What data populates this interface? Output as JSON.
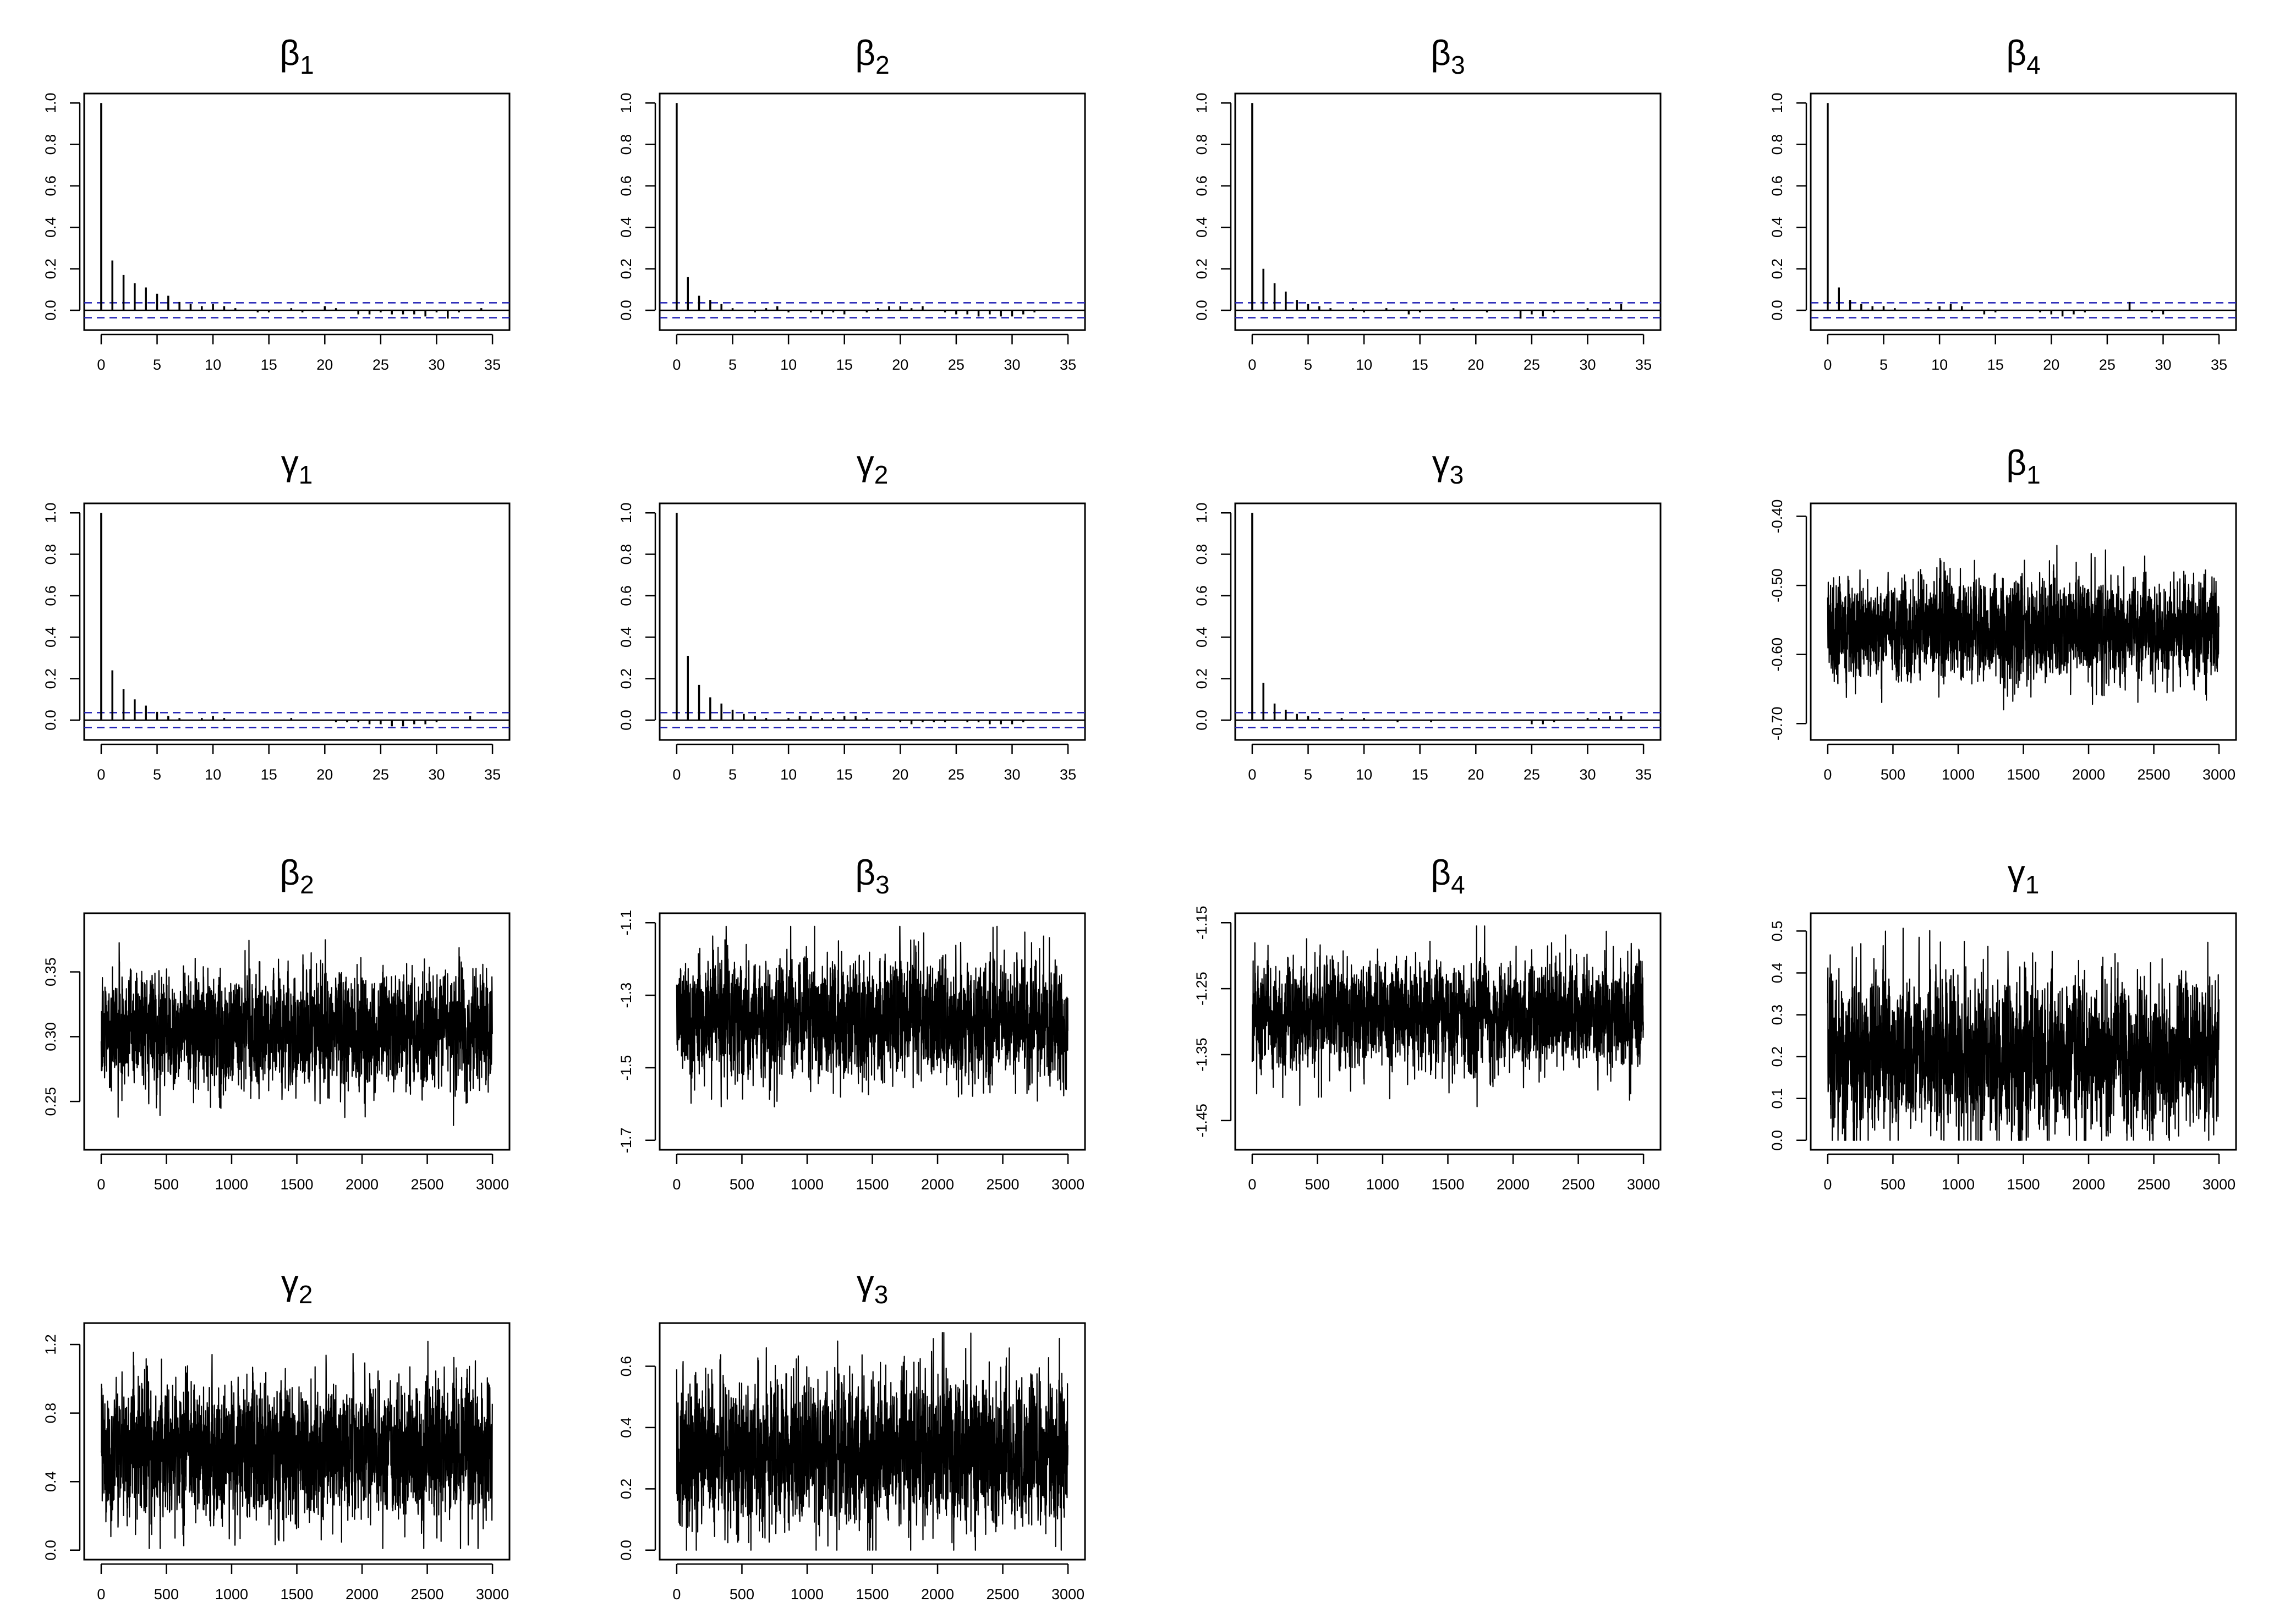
{
  "chart_data": [
    {
      "type": "acf",
      "title": {
        "symbol": "β",
        "sub": "1"
      },
      "xlim": [
        0,
        35
      ],
      "ylim": [
        -0.05,
        1.0
      ],
      "xticks": [
        "0",
        "5",
        "10",
        "15",
        "20",
        "25",
        "30",
        "35"
      ],
      "yticks": [
        "0.0",
        "0.2",
        "0.4",
        "0.6",
        "0.8",
        "1.0"
      ],
      "conf_band": 0.036,
      "lags": [
        0,
        1,
        2,
        3,
        4,
        5,
        6,
        7,
        8,
        9,
        10,
        11,
        12,
        13,
        14,
        15,
        16,
        17,
        18,
        19,
        20,
        21,
        22,
        23,
        24,
        25,
        26,
        27,
        28,
        29,
        30,
        31,
        32,
        33,
        34,
        35
      ],
      "acf": [
        1.0,
        0.24,
        0.17,
        0.13,
        0.11,
        0.08,
        0.07,
        0.04,
        0.03,
        0.02,
        0.03,
        0.02,
        0.01,
        0.0,
        -0.01,
        -0.01,
        0.0,
        0.01,
        -0.01,
        0.0,
        0.02,
        0.01,
        0.0,
        -0.02,
        -0.02,
        -0.01,
        -0.02,
        -0.02,
        -0.02,
        -0.03,
        -0.01,
        -0.04,
        -0.01,
        0.0,
        0.01,
        0.0
      ]
    },
    {
      "type": "acf",
      "title": {
        "symbol": "β",
        "sub": "2"
      },
      "xlim": [
        0,
        35
      ],
      "ylim": [
        -0.05,
        1.0
      ],
      "xticks": [
        "0",
        "5",
        "10",
        "15",
        "20",
        "25",
        "30",
        "35"
      ],
      "yticks": [
        "0.0",
        "0.2",
        "0.4",
        "0.6",
        "0.8",
        "1.0"
      ],
      "conf_band": 0.036,
      "lags": [
        0,
        1,
        2,
        3,
        4,
        5,
        6,
        7,
        8,
        9,
        10,
        11,
        12,
        13,
        14,
        15,
        16,
        17,
        18,
        19,
        20,
        21,
        22,
        23,
        24,
        25,
        26,
        27,
        28,
        29,
        30,
        31,
        32,
        33,
        34,
        35
      ],
      "acf": [
        1.0,
        0.16,
        0.07,
        0.05,
        0.03,
        0.01,
        0.0,
        -0.01,
        0.01,
        0.02,
        -0.01,
        0.0,
        -0.01,
        -0.02,
        -0.01,
        -0.02,
        0.0,
        -0.01,
        0.01,
        0.02,
        0.02,
        0.01,
        0.02,
        0.0,
        -0.01,
        -0.02,
        -0.02,
        -0.03,
        -0.02,
        -0.03,
        -0.03,
        -0.02,
        -0.01,
        0.0,
        0.0,
        0.0
      ]
    },
    {
      "type": "acf",
      "title": {
        "symbol": "β",
        "sub": "3"
      },
      "xlim": [
        0,
        35
      ],
      "ylim": [
        -0.05,
        1.0
      ],
      "xticks": [
        "0",
        "5",
        "10",
        "15",
        "20",
        "25",
        "30",
        "35"
      ],
      "yticks": [
        "0.0",
        "0.2",
        "0.4",
        "0.6",
        "0.8",
        "1.0"
      ],
      "conf_band": 0.036,
      "lags": [
        0,
        1,
        2,
        3,
        4,
        5,
        6,
        7,
        8,
        9,
        10,
        11,
        12,
        13,
        14,
        15,
        16,
        17,
        18,
        19,
        20,
        21,
        22,
        23,
        24,
        25,
        26,
        27,
        28,
        29,
        30,
        31,
        32,
        33,
        34,
        35
      ],
      "acf": [
        1.0,
        0.2,
        0.13,
        0.09,
        0.05,
        0.03,
        0.02,
        0.01,
        0.0,
        0.01,
        -0.01,
        0.0,
        0.01,
        0.0,
        -0.02,
        -0.01,
        0.0,
        0.0,
        0.01,
        0.0,
        0.0,
        -0.01,
        0.0,
        0.0,
        -0.04,
        -0.02,
        -0.03,
        -0.01,
        0.0,
        0.0,
        0.01,
        0.0,
        0.01,
        0.03,
        0.0,
        0.0
      ]
    },
    {
      "type": "acf",
      "title": {
        "symbol": "β",
        "sub": "4"
      },
      "xlim": [
        0,
        35
      ],
      "ylim": [
        -0.05,
        1.0
      ],
      "xticks": [
        "0",
        "5",
        "10",
        "15",
        "20",
        "25",
        "30",
        "35"
      ],
      "yticks": [
        "0.0",
        "0.2",
        "0.4",
        "0.6",
        "0.8",
        "1.0"
      ],
      "conf_band": 0.036,
      "lags": [
        0,
        1,
        2,
        3,
        4,
        5,
        6,
        7,
        8,
        9,
        10,
        11,
        12,
        13,
        14,
        15,
        16,
        17,
        18,
        19,
        20,
        21,
        22,
        23,
        24,
        25,
        26,
        27,
        28,
        29,
        30,
        31,
        32,
        33,
        34,
        35
      ],
      "acf": [
        1.0,
        0.11,
        0.05,
        0.03,
        0.02,
        0.02,
        0.01,
        0.0,
        0.0,
        0.01,
        0.02,
        0.03,
        0.02,
        0.0,
        -0.02,
        -0.01,
        0.0,
        0.0,
        0.0,
        -0.01,
        -0.02,
        -0.03,
        -0.02,
        -0.01,
        0.0,
        0.0,
        0.0,
        0.04,
        0.0,
        -0.01,
        -0.02,
        0.0,
        0.0,
        0.0,
        0.0,
        0.0
      ]
    },
    {
      "type": "acf",
      "title": {
        "symbol": "γ",
        "sub": "1"
      },
      "xlim": [
        0,
        35
      ],
      "ylim": [
        -0.05,
        1.0
      ],
      "xticks": [
        "0",
        "5",
        "10",
        "15",
        "20",
        "25",
        "30",
        "35"
      ],
      "yticks": [
        "0.0",
        "0.2",
        "0.4",
        "0.6",
        "0.8",
        "1.0"
      ],
      "conf_band": 0.036,
      "lags": [
        0,
        1,
        2,
        3,
        4,
        5,
        6,
        7,
        8,
        9,
        10,
        11,
        12,
        13,
        14,
        15,
        16,
        17,
        18,
        19,
        20,
        21,
        22,
        23,
        24,
        25,
        26,
        27,
        28,
        29,
        30,
        31,
        32,
        33,
        34,
        35
      ],
      "acf": [
        1.0,
        0.24,
        0.15,
        0.1,
        0.07,
        0.04,
        0.02,
        0.01,
        0.0,
        0.01,
        0.02,
        0.01,
        0.0,
        0.0,
        0.0,
        0.0,
        0.0,
        0.01,
        0.0,
        0.0,
        0.0,
        -0.01,
        -0.01,
        -0.01,
        -0.02,
        -0.02,
        -0.03,
        -0.03,
        -0.02,
        -0.02,
        -0.01,
        0.0,
        0.0,
        0.02,
        0.0,
        0.0
      ]
    },
    {
      "type": "acf",
      "title": {
        "symbol": "γ",
        "sub": "2"
      },
      "xlim": [
        0,
        35
      ],
      "ylim": [
        -0.05,
        1.0
      ],
      "xticks": [
        "0",
        "5",
        "10",
        "15",
        "20",
        "25",
        "30",
        "35"
      ],
      "yticks": [
        "0.0",
        "0.2",
        "0.4",
        "0.6",
        "0.8",
        "1.0"
      ],
      "conf_band": 0.036,
      "lags": [
        0,
        1,
        2,
        3,
        4,
        5,
        6,
        7,
        8,
        9,
        10,
        11,
        12,
        13,
        14,
        15,
        16,
        17,
        18,
        19,
        20,
        21,
        22,
        23,
        24,
        25,
        26,
        27,
        28,
        29,
        30,
        31,
        32,
        33,
        34,
        35
      ],
      "acf": [
        1.0,
        0.31,
        0.17,
        0.11,
        0.08,
        0.05,
        0.03,
        0.02,
        0.01,
        0.0,
        0.01,
        0.02,
        0.02,
        0.01,
        0.01,
        0.02,
        0.02,
        0.01,
        0.0,
        0.0,
        -0.01,
        -0.02,
        -0.01,
        -0.01,
        -0.01,
        0.0,
        -0.01,
        -0.01,
        -0.02,
        -0.02,
        -0.02,
        -0.01,
        0.0,
        0.0,
        0.0,
        0.0
      ]
    },
    {
      "type": "acf",
      "title": {
        "symbol": "γ",
        "sub": "3"
      },
      "xlim": [
        0,
        35
      ],
      "ylim": [
        -0.05,
        1.0
      ],
      "xticks": [
        "0",
        "5",
        "10",
        "15",
        "20",
        "25",
        "30",
        "35"
      ],
      "yticks": [
        "0.0",
        "0.2",
        "0.4",
        "0.6",
        "0.8",
        "1.0"
      ],
      "conf_band": 0.036,
      "lags": [
        0,
        1,
        2,
        3,
        4,
        5,
        6,
        7,
        8,
        9,
        10,
        11,
        12,
        13,
        14,
        15,
        16,
        17,
        18,
        19,
        20,
        21,
        22,
        23,
        24,
        25,
        26,
        27,
        28,
        29,
        30,
        31,
        32,
        33,
        34,
        35
      ],
      "acf": [
        1.0,
        0.18,
        0.08,
        0.05,
        0.03,
        0.02,
        0.01,
        0.0,
        0.01,
        0.0,
        0.01,
        0.0,
        0.0,
        -0.01,
        0.0,
        0.0,
        -0.01,
        0.0,
        0.0,
        0.0,
        0.0,
        0.0,
        0.0,
        0.0,
        0.0,
        -0.02,
        -0.02,
        -0.01,
        0.0,
        0.0,
        0.01,
        0.01,
        0.02,
        0.02,
        0.0,
        0.0
      ]
    },
    {
      "type": "line",
      "title": {
        "symbol": "β",
        "sub": "1"
      },
      "xlim": [
        0,
        3000
      ],
      "ylim": [
        -0.71,
        -0.395
      ],
      "xticks": [
        "0",
        "500",
        "1000",
        "1500",
        "2000",
        "2500",
        "3000"
      ],
      "yticks": [
        "-0.70",
        "-0.60",
        "-0.50",
        "-0.40"
      ],
      "n": 3000,
      "mean": -0.565,
      "sd": 0.036,
      "min": -0.71,
      "max": -0.395
    },
    {
      "type": "line",
      "title": {
        "symbol": "β",
        "sub": "2"
      },
      "xlim": [
        0,
        3000
      ],
      "ylim": [
        0.22,
        0.388
      ],
      "xticks": [
        "0",
        "500",
        "1000",
        "1500",
        "2000",
        "2500",
        "3000"
      ],
      "yticks": [
        "0.25",
        "0.30",
        "0.35"
      ],
      "n": 3000,
      "mean": 0.305,
      "sd": 0.022,
      "min": 0.222,
      "max": 0.388
    },
    {
      "type": "line",
      "title": {
        "symbol": "β",
        "sub": "3"
      },
      "xlim": [
        0,
        3000
      ],
      "ylim": [
        -1.7,
        -1.1
      ],
      "xticks": [
        "0",
        "500",
        "1000",
        "1500",
        "2000",
        "2500",
        "3000"
      ],
      "yticks": [
        "-1.7",
        "-1.5",
        "-1.3",
        "-1.1"
      ],
      "n": 3000,
      "mean": -1.37,
      "sd": 0.08,
      "min": -1.7,
      "max": -1.11
    },
    {
      "type": "line",
      "title": {
        "symbol": "β",
        "sub": "4"
      },
      "xlim": [
        0,
        3000
      ],
      "ylim": [
        -1.48,
        -1.15
      ],
      "xticks": [
        "0",
        "500",
        "1000",
        "1500",
        "2000",
        "2500",
        "3000"
      ],
      "yticks": [
        "-1.45",
        "-1.35",
        "-1.25",
        "-1.15"
      ],
      "n": 3000,
      "mean": -1.29,
      "sd": 0.04,
      "min": -1.475,
      "max": -1.155
    },
    {
      "type": "line",
      "title": {
        "symbol": "γ",
        "sub": "1"
      },
      "xlim": [
        0,
        3000
      ],
      "ylim": [
        0.0,
        0.52
      ],
      "xticks": [
        "0",
        "500",
        "1000",
        "1500",
        "2000",
        "2500",
        "3000"
      ],
      "yticks": [
        "0.0",
        "0.1",
        "0.2",
        "0.3",
        "0.4",
        "0.5"
      ],
      "n": 3000,
      "mean": 0.2,
      "sd": 0.09,
      "min": 0.0,
      "max": 0.52
    },
    {
      "type": "line",
      "title": {
        "symbol": "γ",
        "sub": "2"
      },
      "xlim": [
        0,
        3000
      ],
      "ylim": [
        0.0,
        1.27
      ],
      "xticks": [
        "0",
        "500",
        "1000",
        "1500",
        "2000",
        "2500",
        "3000"
      ],
      "yticks": [
        "0.0",
        "0.4",
        "0.8",
        "1.2"
      ],
      "n": 3000,
      "mean": 0.58,
      "sd": 0.2,
      "min": 0.01,
      "max": 1.27
    },
    {
      "type": "line",
      "title": {
        "symbol": "γ",
        "sub": "3"
      },
      "xlim": [
        0,
        3000
      ],
      "ylim": [
        0.0,
        0.71
      ],
      "xticks": [
        "0",
        "500",
        "1000",
        "1500",
        "2000",
        "2500",
        "3000"
      ],
      "yticks": [
        "0.0",
        "0.2",
        "0.4",
        "0.6"
      ],
      "n": 3000,
      "mean": 0.32,
      "sd": 0.12,
      "min": 0.0,
      "max": 0.71
    }
  ]
}
